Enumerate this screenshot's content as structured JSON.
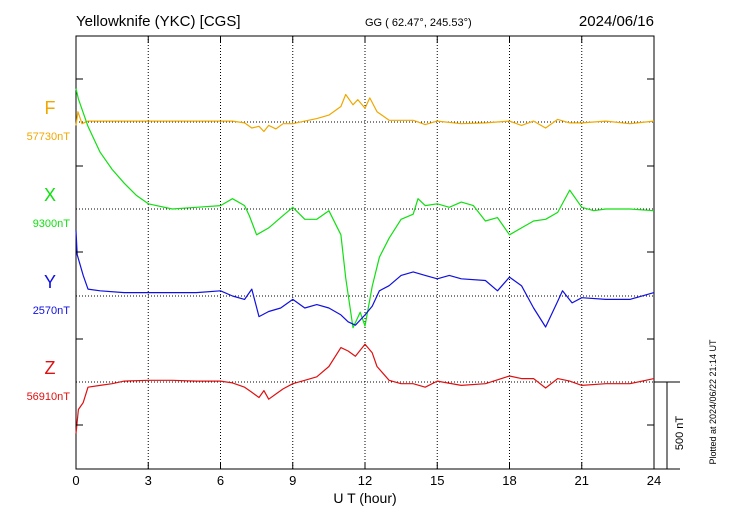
{
  "header": {
    "station": "Yellowknife (YKC)  [CGS]",
    "coords": "GG ( 62.47°, 245.53°)",
    "date": "2024/06/16"
  },
  "footer": {
    "plotted": "Plotted at 2024/06/22 21:14 UT"
  },
  "chart_data": {
    "type": "line",
    "xlabel": "U T (hour)",
    "xlim": [
      0,
      24
    ],
    "xticks": [
      0,
      3,
      6,
      9,
      12,
      15,
      18,
      21,
      24
    ],
    "grid": true,
    "scale_bar": {
      "label": "500 nT",
      "value_nT": 500
    },
    "series": [
      {
        "name": "F",
        "baseline_label": "57730nT",
        "color": "#f0a800",
        "x": [
          0,
          0.08,
          0.25,
          0.5,
          1,
          2,
          3,
          4,
          5,
          6,
          6.5,
          7,
          7.3,
          7.6,
          7.8,
          8,
          8.3,
          8.6,
          9,
          9.5,
          10,
          10.5,
          11,
          11.2,
          11.5,
          11.7,
          12,
          12.2,
          12.5,
          13,
          13.5,
          14,
          14.5,
          15,
          16,
          17,
          18,
          18.5,
          19,
          19.5,
          20,
          20.5,
          21,
          22,
          23,
          24
        ],
        "y": [
          -20,
          60,
          -10,
          5,
          5,
          5,
          5,
          5,
          5,
          5,
          5,
          -5,
          -35,
          -25,
          -55,
          -20,
          -40,
          -10,
          -10,
          5,
          20,
          40,
          90,
          160,
          100,
          130,
          80,
          140,
          60,
          10,
          10,
          10,
          -15,
          5,
          -10,
          -5,
          5,
          -20,
          5,
          -35,
          15,
          -5,
          -5,
          5,
          -10,
          5
        ]
      },
      {
        "name": "X",
        "baseline_label": "9300nT",
        "color": "#10e010",
        "x": [
          0,
          0.1,
          0.5,
          1,
          1.5,
          2,
          2.5,
          3,
          4,
          5,
          6,
          6.5,
          7,
          7.2,
          7.5,
          8,
          8.5,
          9,
          9.5,
          10,
          10.5,
          11,
          11.2,
          11.5,
          11.8,
          12,
          12.3,
          12.6,
          13,
          13.5,
          14,
          14.2,
          14.5,
          15,
          15.5,
          16,
          16.5,
          17,
          17.5,
          18,
          18.5,
          19,
          19.5,
          20,
          20.5,
          21,
          21.5,
          22,
          23,
          24
        ],
        "y": [
          700,
          640,
          480,
          330,
          230,
          150,
          80,
          30,
          0,
          10,
          20,
          60,
          20,
          -40,
          -150,
          -110,
          -50,
          10,
          -60,
          -60,
          -10,
          -150,
          -400,
          -690,
          -600,
          -680,
          -450,
          -280,
          -170,
          -60,
          -30,
          60,
          20,
          30,
          10,
          40,
          20,
          -70,
          -50,
          -150,
          -110,
          -70,
          -60,
          -20,
          110,
          10,
          -10,
          0,
          0,
          -10
        ]
      },
      {
        "name": "Y",
        "baseline_label": "2570nT",
        "color": "#1010e0",
        "x": [
          0,
          0.05,
          0.3,
          0.5,
          1,
          2,
          3,
          4,
          5,
          6,
          6.5,
          7,
          7.3,
          7.6,
          8,
          8.5,
          9,
          9.5,
          10,
          10.5,
          11,
          11.3,
          11.6,
          12,
          12.3,
          12.6,
          13,
          13.5,
          14,
          14.5,
          15,
          15.5,
          16,
          17,
          17.5,
          18,
          18.5,
          19,
          19.5,
          20,
          20.2,
          20.6,
          21,
          22,
          23,
          24
        ],
        "y": [
          380,
          240,
          120,
          40,
          30,
          20,
          20,
          20,
          20,
          30,
          0,
          -20,
          40,
          -120,
          -90,
          -70,
          -20,
          -70,
          -50,
          -70,
          -110,
          -150,
          -170,
          -110,
          -60,
          30,
          60,
          120,
          140,
          120,
          100,
          120,
          100,
          90,
          30,
          110,
          60,
          -70,
          -180,
          -30,
          30,
          -40,
          -10,
          -20,
          -20,
          20
        ]
      },
      {
        "name": "Z",
        "baseline_label": "56910nT",
        "color": "#e01010",
        "x": [
          0,
          0.1,
          0.3,
          0.5,
          1,
          1.5,
          2,
          3,
          4,
          5,
          6,
          6.5,
          7,
          7.3,
          7.6,
          7.8,
          8,
          8.3,
          8.6,
          9,
          9.5,
          10,
          10.5,
          11,
          11.3,
          11.6,
          12,
          12.3,
          12.5,
          13,
          13.5,
          14,
          14.5,
          15,
          16,
          17,
          18,
          18.5,
          19,
          19.5,
          20,
          20.5,
          21,
          22,
          23,
          24
        ],
        "y": [
          -300,
          -160,
          -120,
          -30,
          -20,
          -10,
          5,
          10,
          10,
          5,
          5,
          -5,
          -30,
          -60,
          -90,
          -50,
          -100,
          -70,
          -40,
          -10,
          10,
          30,
          90,
          200,
          180,
          150,
          220,
          170,
          90,
          10,
          -10,
          -10,
          -30,
          5,
          -20,
          -10,
          35,
          20,
          20,
          -35,
          20,
          5,
          -20,
          -10,
          -10,
          20
        ]
      }
    ]
  }
}
